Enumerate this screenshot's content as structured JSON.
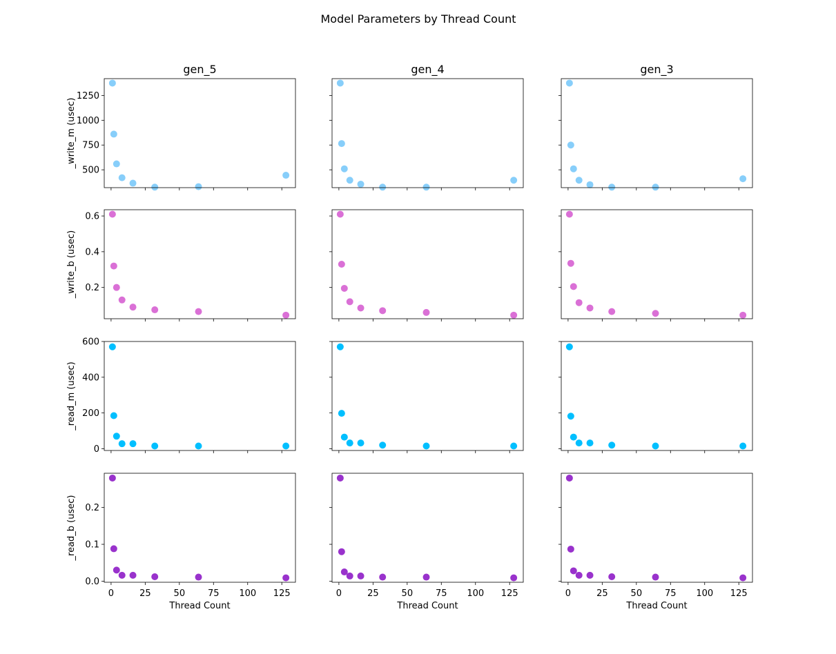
{
  "suptitle": "Model Parameters by Thread Count",
  "columns": [
    "gen_5",
    "gen_4",
    "gen_3"
  ],
  "xlabel": "Thread Count",
  "x_ticks": [
    0,
    25,
    50,
    75,
    100,
    125
  ],
  "xlim": [
    -5,
    135
  ],
  "rows": [
    {
      "ylabel": "_write_m (usec)",
      "color": "#87cefa",
      "ylim": [
        320,
        1420
      ],
      "yticks": [
        500,
        750,
        1000,
        1250
      ]
    },
    {
      "ylabel": "_write_b (usec)",
      "color": "#da70d6",
      "ylim": [
        0.025,
        0.635
      ],
      "yticks": [
        0.2,
        0.4,
        0.6
      ]
    },
    {
      "ylabel": "_read_m (usec)",
      "color": "#00bfff",
      "ylim": [
        -10,
        600
      ],
      "yticks": [
        0,
        200,
        400,
        600
      ]
    },
    {
      "ylabel": "_read_b (usec)",
      "color": "#9932cc",
      "ylim": [
        -0.003,
        0.293
      ],
      "yticks": [
        0.0,
        0.1,
        0.2
      ]
    }
  ],
  "chart_data": [
    {
      "type": "scatter",
      "column": "gen_5",
      "row": "_write_m (usec)",
      "x": [
        1,
        2,
        4,
        8,
        16,
        32,
        64,
        128
      ],
      "y": [
        1375,
        860,
        560,
        420,
        365,
        325,
        330,
        445
      ]
    },
    {
      "type": "scatter",
      "column": "gen_4",
      "row": "_write_m (usec)",
      "x": [
        1,
        2,
        4,
        8,
        16,
        32,
        64,
        128
      ],
      "y": [
        1375,
        765,
        510,
        395,
        355,
        325,
        325,
        395
      ]
    },
    {
      "type": "scatter",
      "column": "gen_3",
      "row": "_write_m (usec)",
      "x": [
        1,
        2,
        4,
        8,
        16,
        32,
        64,
        128
      ],
      "y": [
        1375,
        750,
        510,
        395,
        350,
        325,
        325,
        410
      ]
    },
    {
      "type": "scatter",
      "column": "gen_5",
      "row": "_write_b (usec)",
      "x": [
        1,
        2,
        4,
        8,
        16,
        32,
        64,
        128
      ],
      "y": [
        0.61,
        0.32,
        0.2,
        0.13,
        0.09,
        0.075,
        0.065,
        0.045
      ]
    },
    {
      "type": "scatter",
      "column": "gen_4",
      "row": "_write_b (usec)",
      "x": [
        1,
        2,
        4,
        8,
        16,
        32,
        64,
        128
      ],
      "y": [
        0.61,
        0.33,
        0.195,
        0.12,
        0.085,
        0.07,
        0.06,
        0.045
      ]
    },
    {
      "type": "scatter",
      "column": "gen_3",
      "row": "_write_b (usec)",
      "x": [
        1,
        2,
        4,
        8,
        16,
        32,
        64,
        128
      ],
      "y": [
        0.61,
        0.335,
        0.205,
        0.115,
        0.085,
        0.065,
        0.055,
        0.045
      ]
    },
    {
      "type": "scatter",
      "column": "gen_5",
      "row": "_read_m (usec)",
      "x": [
        1,
        2,
        4,
        8,
        16,
        32,
        64,
        128
      ],
      "y": [
        570,
        185,
        70,
        28,
        28,
        15,
        15,
        15
      ]
    },
    {
      "type": "scatter",
      "column": "gen_4",
      "row": "_read_m (usec)",
      "x": [
        1,
        2,
        4,
        8,
        16,
        32,
        64,
        128
      ],
      "y": [
        570,
        198,
        65,
        32,
        32,
        20,
        15,
        15
      ]
    },
    {
      "type": "scatter",
      "column": "gen_3",
      "row": "_read_m (usec)",
      "x": [
        1,
        2,
        4,
        8,
        16,
        32,
        64,
        128
      ],
      "y": [
        570,
        182,
        65,
        32,
        32,
        20,
        15,
        15
      ]
    },
    {
      "type": "scatter",
      "column": "gen_5",
      "row": "_read_b (usec)",
      "x": [
        1,
        2,
        4,
        8,
        16,
        32,
        64,
        128
      ],
      "y": [
        0.28,
        0.088,
        0.03,
        0.016,
        0.016,
        0.012,
        0.011,
        0.009
      ]
    },
    {
      "type": "scatter",
      "column": "gen_4",
      "row": "_read_b (usec)",
      "x": [
        1,
        2,
        4,
        8,
        16,
        32,
        64,
        128
      ],
      "y": [
        0.28,
        0.08,
        0.025,
        0.014,
        0.014,
        0.011,
        0.011,
        0.009
      ]
    },
    {
      "type": "scatter",
      "column": "gen_3",
      "row": "_read_b (usec)",
      "x": [
        1,
        2,
        4,
        8,
        16,
        32,
        64,
        128
      ],
      "y": [
        0.28,
        0.087,
        0.028,
        0.016,
        0.016,
        0.012,
        0.011,
        0.009
      ]
    }
  ]
}
